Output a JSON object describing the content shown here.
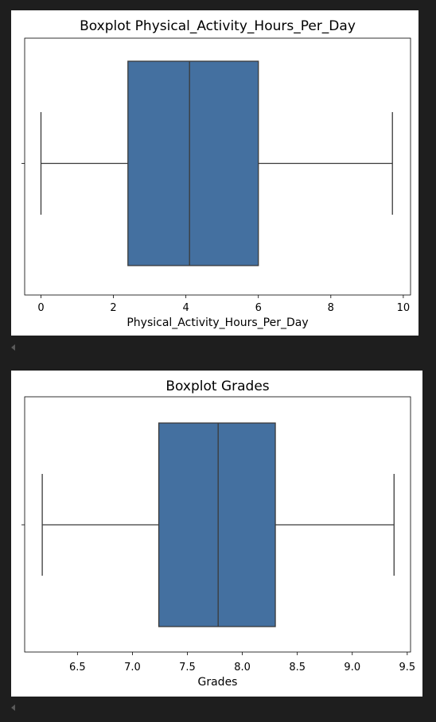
{
  "chart_data": [
    {
      "type": "boxplot",
      "title": "Boxplot Physical_Activity_Hours_Per_Day",
      "xlabel": "Physical_Activity_Hours_Per_Day",
      "xlim": [
        -0.45,
        10.2
      ],
      "xticks": [
        0,
        2,
        4,
        6,
        8,
        10
      ],
      "xtick_labels": [
        "0",
        "2",
        "4",
        "6",
        "8",
        "10"
      ],
      "box": {
        "whisker_low": 0.0,
        "q1": 2.4,
        "median": 4.1,
        "q3": 6.0,
        "whisker_high": 9.7
      },
      "color": "#4470a0",
      "grid": false
    },
    {
      "type": "boxplot",
      "title": "Boxplot Grades",
      "xlabel": "Grades",
      "xlim": [
        6.02,
        9.53
      ],
      "xticks": [
        6.5,
        7.0,
        7.5,
        8.0,
        8.5,
        9.0,
        9.5
      ],
      "xtick_labels": [
        "6.5",
        "7.0",
        "7.5",
        "8.0",
        "8.5",
        "9.0",
        "9.5"
      ],
      "box": {
        "whisker_low": 6.18,
        "q1": 7.24,
        "median": 7.78,
        "q3": 8.3,
        "whisker_high": 9.38
      },
      "color": "#4470a0",
      "grid": false
    }
  ],
  "colors": {
    "box_fill": "#4470a0",
    "line": "#3a3a3a",
    "background": "#1e1e1e",
    "panel": "#ffffff",
    "scroll_arrow": "#5a5a5a"
  },
  "icons": {
    "scroll_left": "chevron-left-icon"
  }
}
